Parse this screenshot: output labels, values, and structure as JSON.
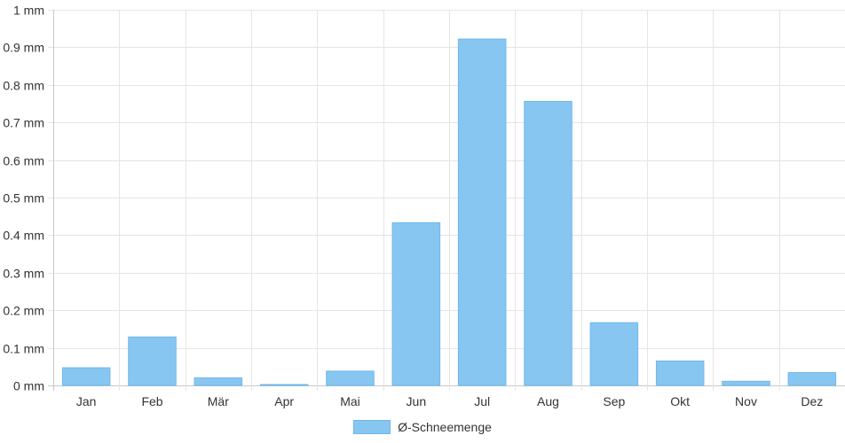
{
  "chart_data": {
    "type": "bar",
    "categories": [
      "Jan",
      "Feb",
      "Mär",
      "Apr",
      "Mai",
      "Jun",
      "Jul",
      "Aug",
      "Sep",
      "Okt",
      "Nov",
      "Dez"
    ],
    "series": [
      {
        "name": "Ø-Schneemenge",
        "values": [
          0.047,
          0.129,
          0.02,
          0.002,
          0.038,
          0.433,
          0.922,
          0.756,
          0.167,
          0.065,
          0.011,
          0.034
        ]
      }
    ],
    "ylim": [
      0,
      1
    ],
    "y_ticks": [
      0,
      0.1,
      0.2,
      0.3,
      0.4,
      0.5,
      0.6,
      0.7,
      0.8,
      0.9,
      1
    ],
    "y_tick_labels": [
      "0 mm",
      "0.1 mm",
      "0.2 mm",
      "0.3 mm",
      "0.4 mm",
      "0.5 mm",
      "0.6 mm",
      "0.7 mm",
      "0.8 mm",
      "0.9 mm",
      "1 mm"
    ],
    "grid": true,
    "legend_position": "bottom",
    "colors": {
      "bar_fill": "#88c6f2",
      "bar_stroke": "#6fb7ea",
      "grid": "#e5e5e5",
      "axis": "#c8c8c8"
    }
  }
}
